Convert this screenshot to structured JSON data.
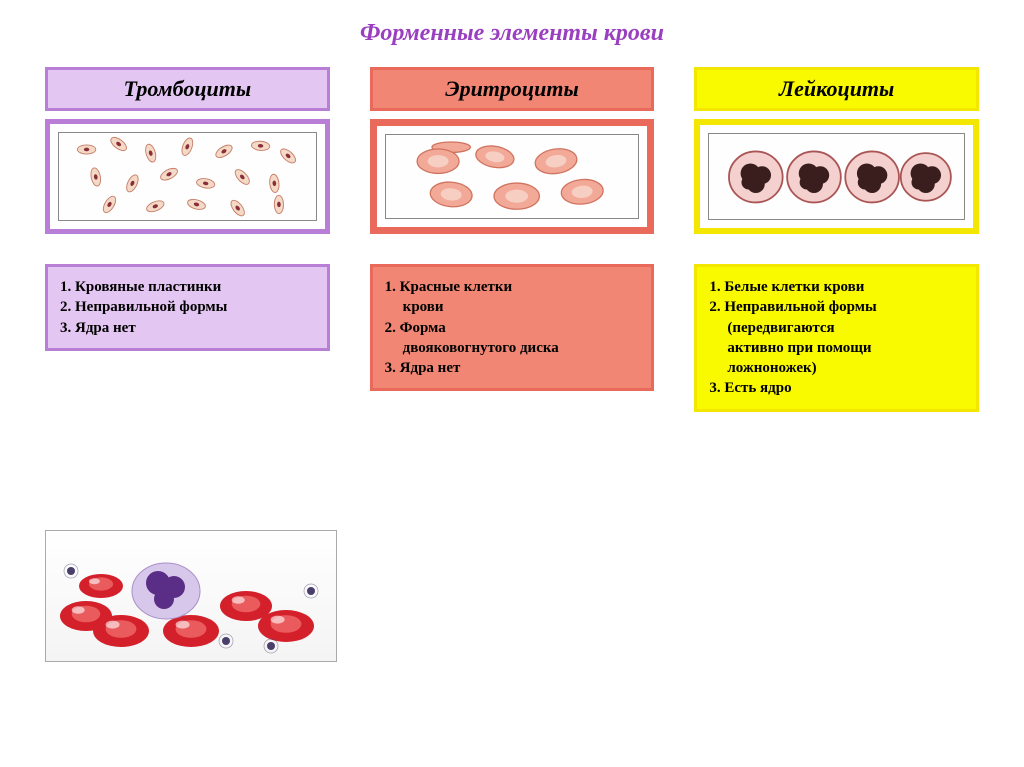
{
  "title": "Форменные элементы крови",
  "title_color": "#9a3fc0",
  "title_fontsize": 24,
  "background": "#ffffff",
  "columns": [
    {
      "id": "thrombocytes",
      "header": "Тромбоциты",
      "border_color": "#b97fd6",
      "fill_color": "#e4c6f2",
      "border_width": 5,
      "desc_lines": [
        {
          "t": "1. Кровяные пластинки",
          "indent": 0
        },
        {
          "t": "2. Неправильной формы",
          "indent": 0
        },
        {
          "t": "3. Ядра нет",
          "indent": 0
        }
      ],
      "cell_render": "platelets",
      "platelet_body_fill": "#f3d9c6",
      "platelet_body_stroke": "#c77f6a",
      "platelet_center_fill": "#8a2f3a",
      "platelet_count": 18
    },
    {
      "id": "erythrocytes",
      "header": "Эритроциты",
      "border_color": "#e96a5b",
      "fill_color": "#f08673",
      "border_width": 7,
      "desc_lines": [
        {
          "t": "1. Красные клетки",
          "indent": 0
        },
        {
          "t": "крови",
          "indent": 1
        },
        {
          "t": "2. Форма",
          "indent": 0
        },
        {
          "t": "двояковогнутого диска",
          "indent": 1
        },
        {
          "t": "3. Ядра нет",
          "indent": 0
        }
      ],
      "cell_render": "rbc",
      "rbc_fill": "#f2a997",
      "rbc_stroke": "#d0745f",
      "rbc_center": "#f7cfc2",
      "rbc_count": 6
    },
    {
      "id": "leukocytes",
      "header": "Лейкоциты",
      "border_color": "#f3e600",
      "fill_color": "#f9f900",
      "border_width": 6,
      "desc_lines": [
        {
          "t": "1. Белые клетки крови",
          "indent": 0
        },
        {
          "t": "2. Неправильной формы",
          "indent": 0
        },
        {
          "t": "(передвигаются",
          "indent": 1
        },
        {
          "t": "активно при помощи",
          "indent": 1
        },
        {
          "t": "ложноножек)",
          "indent": 1
        },
        {
          "t": "3. Есть ядро",
          "indent": 0
        }
      ],
      "cell_render": "wbc",
      "wbc_membrane_fill": "#f4d0cf",
      "wbc_membrane_stroke": "#a55",
      "wbc_nucleus_fill": "#3a1e1e",
      "wbc_count": 4
    }
  ],
  "bottom_image": {
    "rbc_fill": "#d4202a",
    "rbc_highlight": "#ef6a6a",
    "rbc_count": 6,
    "wbc_membrane": "#d7c7ea",
    "wbc_nucleus": "#5a2e87",
    "platelet_fill": "#4a3f6b",
    "platelet_count": 4
  }
}
